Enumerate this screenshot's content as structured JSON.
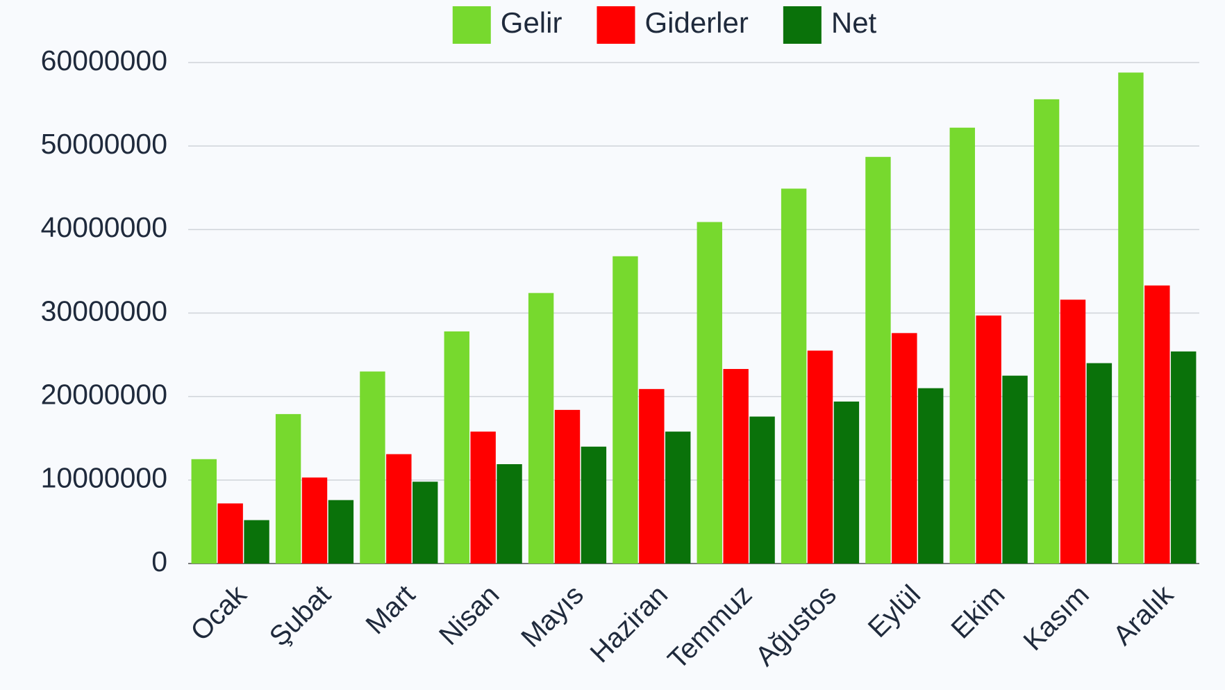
{
  "chart_data": {
    "type": "bar",
    "categories": [
      "Ocak",
      "Şubat",
      "Mart",
      "Nisan",
      "Mayıs",
      "Haziran",
      "Temmuz",
      "Ağustos",
      "Eylül",
      "Ekim",
      "Kasım",
      "Aralık"
    ],
    "series": [
      {
        "name": "Gelir",
        "color": "#77d92e",
        "values": [
          12500000,
          17900000,
          23000000,
          27800000,
          32400000,
          36800000,
          40900000,
          44900000,
          48700000,
          52200000,
          55600000,
          58800000
        ]
      },
      {
        "name": "Giderler",
        "color": "#ff0000",
        "values": [
          7200000,
          10300000,
          13100000,
          15800000,
          18400000,
          20900000,
          23300000,
          25500000,
          27600000,
          29700000,
          31600000,
          33300000
        ]
      },
      {
        "name": "Net",
        "color": "#0a720a",
        "values": [
          5200000,
          7600000,
          9800000,
          11900000,
          14000000,
          15800000,
          17600000,
          19400000,
          21000000,
          22500000,
          24000000,
          25400000
        ]
      }
    ],
    "ylim": [
      0,
      60000000
    ],
    "yticks": [
      0,
      10000000,
      20000000,
      30000000,
      40000000,
      50000000,
      60000000
    ],
    "grid": true,
    "legend": "top"
  }
}
